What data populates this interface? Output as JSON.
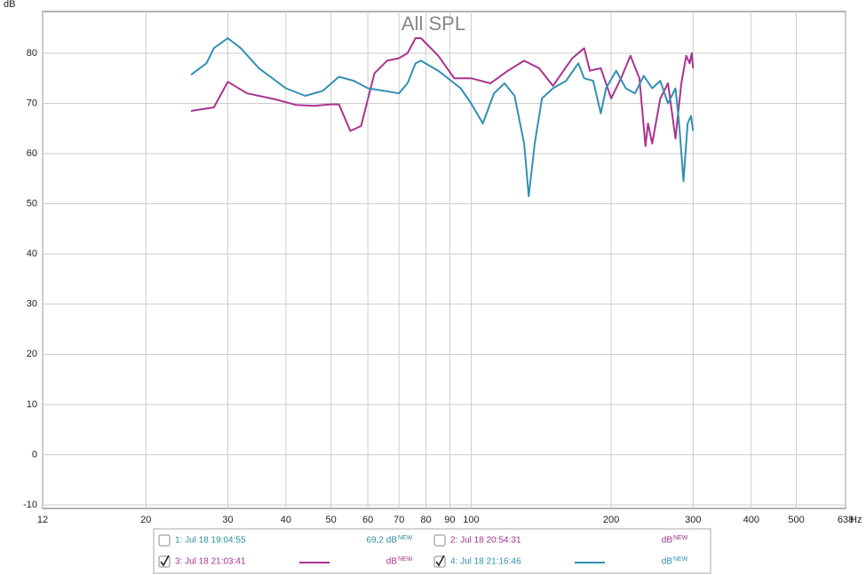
{
  "chart_data": {
    "type": "line",
    "title": "All SPL",
    "y_label": "dB",
    "x_label": "Hz",
    "log_x": true,
    "grid": true,
    "xlim": [
      12,
      638
    ],
    "xticks": [
      12,
      20,
      30,
      40,
      50,
      60,
      70,
      80,
      90,
      100,
      200,
      300,
      400,
      500,
      638
    ],
    "ylim": [
      -10.7,
      88.3
    ],
    "yticks": [
      -10,
      0,
      10,
      20,
      30,
      40,
      50,
      60,
      70,
      80
    ],
    "series": [
      {
        "name": "1: Jul 18 19:04:55",
        "color": "#2a8f9a",
        "checked": false,
        "readout": "69,2 dB",
        "badge": "NEW"
      },
      {
        "name": "2: Jul 18 20:54:31",
        "color": "#a0338f",
        "checked": false,
        "readout": "dB",
        "badge": "NEW"
      },
      {
        "name": "3: Jul 18 21:03:41",
        "color": "#a8338f",
        "checked": true,
        "readout": "dB",
        "badge": "NEW",
        "x": [
          25,
          28,
          30,
          33,
          38,
          42,
          46,
          50,
          52,
          55,
          58,
          62,
          66,
          70,
          73,
          76,
          78,
          85,
          92,
          100,
          110,
          120,
          130,
          140,
          150,
          165,
          175,
          180,
          190,
          200,
          210,
          220,
          230,
          237,
          240,
          245,
          255,
          265,
          275,
          283,
          290,
          295,
          298,
          300
        ],
        "values": [
          68.5,
          69.2,
          74.3,
          72,
          70.8,
          69.7,
          69.5,
          69.8,
          69.8,
          64.5,
          65.5,
          76,
          78.5,
          79,
          80,
          83,
          83,
          79.5,
          75,
          75,
          74,
          76.5,
          78.5,
          77,
          73.5,
          79,
          81,
          76.5,
          77,
          71,
          75,
          79.5,
          75,
          61.5,
          66,
          62,
          71,
          74,
          63,
          74,
          79.5,
          78,
          80,
          77
        ]
      },
      {
        "name": "4: Jul 18 21:16:46",
        "color": "#3190b4",
        "checked": true,
        "readout": "dB",
        "badge": "NEW",
        "x": [
          25,
          27,
          28,
          30,
          32,
          35,
          40,
          44,
          48,
          52,
          56,
          60,
          65,
          70,
          73,
          76,
          78,
          85,
          95,
          100,
          106,
          112,
          118,
          124,
          130,
          133,
          137,
          142,
          150,
          160,
          170,
          175,
          183,
          190,
          195,
          205,
          215,
          225,
          235,
          245,
          255,
          265,
          275,
          280,
          286,
          292,
          297,
          300
        ],
        "values": [
          75.7,
          78,
          81,
          83,
          81,
          77,
          73,
          71.5,
          72.5,
          75.3,
          74.5,
          73,
          72.5,
          72,
          74,
          78,
          78.5,
          76.5,
          73,
          70,
          66,
          72,
          74,
          71.5,
          62,
          51.5,
          62,
          71,
          73,
          74.5,
          78,
          75,
          74.5,
          68,
          73,
          76.5,
          73,
          72,
          75.5,
          73,
          74.5,
          70,
          73,
          66,
          54.5,
          66,
          67.5,
          64.5
        ]
      }
    ]
  }
}
